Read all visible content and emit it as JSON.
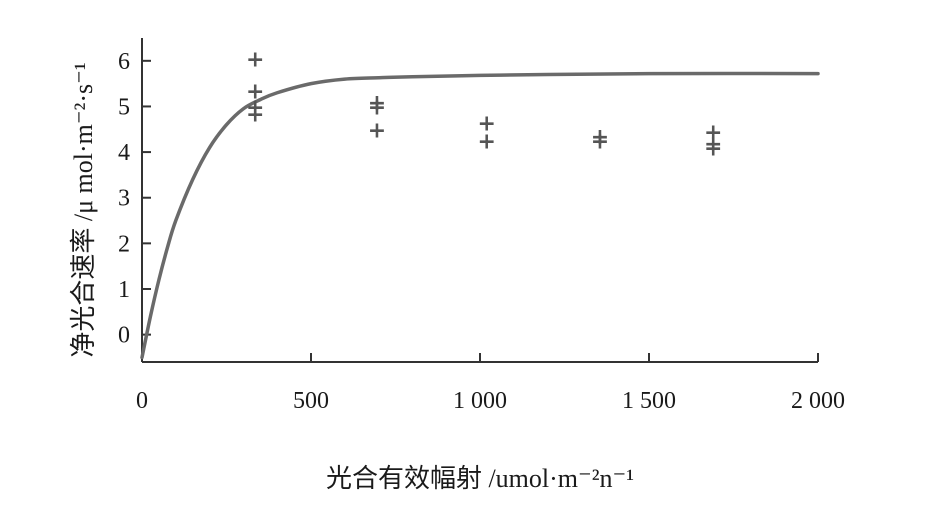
{
  "chart_data": {
    "type": "scatter",
    "xlabel": "光合有效幅射 /umol·m⁻²n⁻¹",
    "ylabel": "净光合速率 /μ mol·m⁻²·s⁻¹",
    "xlim": [
      0,
      2000
    ],
    "ylim": [
      -0.6,
      6.5
    ],
    "x_ticks": [
      0,
      500,
      1000,
      1500,
      2000
    ],
    "x_tick_labels": [
      "0",
      "500",
      "1 000",
      "1 500",
      "2 000"
    ],
    "y_ticks": [
      0,
      1,
      2,
      3,
      4,
      5,
      6
    ],
    "y_tick_labels": [
      "0",
      "1",
      "2",
      "3",
      "4",
      "5",
      "6"
    ],
    "grid": false,
    "marker_symbol": "+",
    "series": [
      {
        "kind": "points",
        "x": [
          335,
          335,
          335,
          335,
          695,
          695,
          695,
          1020,
          1020,
          1355,
          1355,
          1690,
          1690,
          1690
        ],
        "y": [
          6.05,
          5.35,
          5.0,
          4.85,
          5.1,
          5.0,
          4.5,
          4.65,
          4.25,
          4.35,
          4.25,
          4.45,
          4.2,
          4.1
        ]
      },
      {
        "kind": "curve",
        "x": [
          0,
          25,
          50,
          75,
          100,
          150,
          200,
          250,
          300,
          350,
          400,
          500,
          600,
          700,
          800,
          1000,
          1200,
          1500,
          2000
        ],
        "y": [
          -0.5,
          0.4,
          1.2,
          1.9,
          2.5,
          3.4,
          4.1,
          4.6,
          4.95,
          5.15,
          5.3,
          5.5,
          5.6,
          5.63,
          5.65,
          5.68,
          5.7,
          5.72,
          5.72
        ]
      }
    ]
  }
}
